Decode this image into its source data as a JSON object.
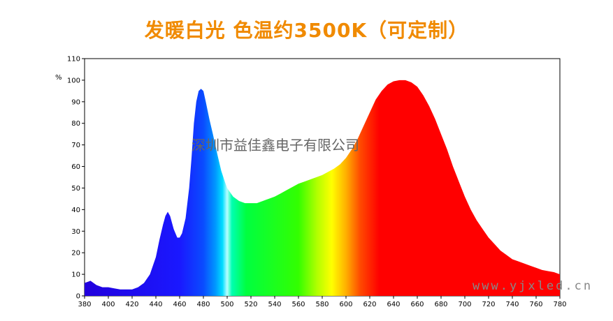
{
  "title": "发暖白光 色温约3500K（可定制）",
  "watermark_company": "深圳市益佳鑫电子有限公司",
  "watermark_url": "www.yjxled.cn",
  "colors": {
    "title": "#f08a00",
    "axis": "#000000"
  },
  "chart_data": {
    "type": "area",
    "title": "发暖白光 色温约3500K（可定制）",
    "xlabel": "",
    "ylabel": "%",
    "xlim": [
      380,
      780
    ],
    "ylim": [
      0,
      110
    ],
    "x_ticks": [
      380,
      400,
      420,
      440,
      460,
      480,
      500,
      520,
      540,
      560,
      580,
      600,
      620,
      640,
      660,
      680,
      700,
      720,
      740,
      760,
      780
    ],
    "y_ticks": [
      0,
      10,
      20,
      30,
      40,
      50,
      60,
      70,
      80,
      90,
      100,
      110
    ],
    "grid": false,
    "fill": "visible-spectrum gradient (blue → green → yellow → red)",
    "series": [
      {
        "x": [
          380,
          385,
          390,
          395,
          400,
          405,
          410,
          415,
          420,
          425,
          430,
          435,
          440,
          443,
          446,
          448,
          450,
          452,
          455,
          458,
          460,
          462,
          465,
          468,
          470,
          472,
          474,
          476,
          478,
          480,
          482,
          485,
          488,
          490,
          492,
          495,
          498,
          500,
          505,
          510,
          515,
          520,
          525,
          530,
          535,
          540,
          545,
          550,
          555,
          560,
          565,
          570,
          575,
          580,
          585,
          590,
          595,
          600,
          605,
          610,
          615,
          620,
          625,
          630,
          635,
          640,
          645,
          650,
          655,
          660,
          665,
          670,
          675,
          680,
          685,
          690,
          695,
          700,
          705,
          710,
          715,
          720,
          725,
          730,
          735,
          740,
          745,
          750,
          755,
          760,
          765,
          770,
          775,
          780
        ],
        "y": [
          6,
          7,
          5,
          4,
          4,
          3.5,
          3,
          3,
          3,
          4,
          6,
          10,
          18,
          26,
          33,
          37,
          39,
          37,
          31,
          27,
          27,
          29,
          36,
          50,
          64,
          80,
          90,
          95,
          96,
          95,
          90,
          82,
          75,
          70,
          65,
          58,
          53,
          50,
          46,
          44,
          43,
          43,
          43,
          44,
          45,
          46,
          47.5,
          49,
          50.5,
          52,
          53,
          54,
          55,
          56,
          57.5,
          59,
          61,
          64,
          68,
          73,
          79,
          85,
          91,
          95,
          98,
          99.5,
          100,
          100,
          99,
          97,
          93,
          88,
          82,
          75,
          68,
          60,
          53,
          46,
          40,
          35,
          31,
          27,
          24,
          21,
          19,
          17,
          16,
          15,
          14,
          13,
          12,
          11.5,
          11,
          10
        ]
      }
    ]
  }
}
